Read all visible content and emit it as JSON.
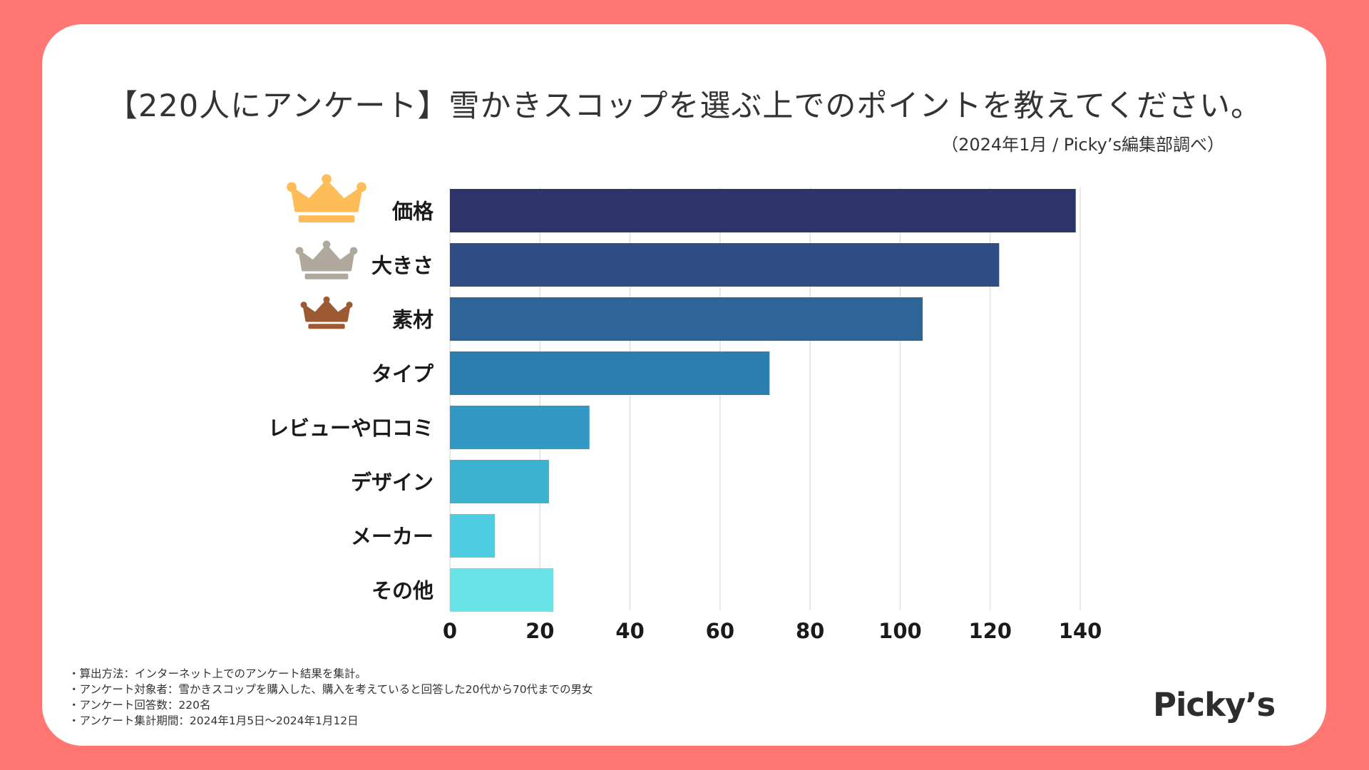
{
  "header": {
    "title": "【220人にアンケート】雪かきスコップを選ぶ上でのポイントを教えてください。",
    "source": "（2024年1月 / Picky’s編集部調べ）"
  },
  "chart_data": {
    "type": "bar",
    "orientation": "horizontal",
    "categories": [
      "価格",
      "大きさ",
      "素材",
      "タイプ",
      "レビューや口コミ",
      "デザイン",
      "メーカー",
      "その他"
    ],
    "values": [
      139,
      122,
      105,
      71,
      31,
      22,
      10,
      23
    ],
    "colors": [
      "#2e3369",
      "#304d86",
      "#2f6499",
      "#2c7eb0",
      "#3399c4",
      "#3cb2d1",
      "#4ecde0",
      "#68e3e6"
    ],
    "xticks": [
      0,
      20,
      40,
      60,
      80,
      100,
      120,
      140
    ],
    "xlim": [
      0,
      140
    ],
    "rank_crowns": [
      {
        "rank": 1,
        "color": "#ffbd59"
      },
      {
        "rank": 2,
        "color": "#b0a89d"
      },
      {
        "rank": 3,
        "color": "#9c5a33"
      }
    ],
    "gridline_color": "#d9d9d9"
  },
  "footnotes": [
    "・算出方法：インターネット上でのアンケート結果を集計。",
    "・アンケート対象者：雪かきスコップを購入した、購入を考えていると回答した20代から70代までの男女",
    "・アンケート回答数：220名",
    "・アンケート集計期間：2024年1月5日〜2024年1月12日"
  ],
  "brand": {
    "logo_text": "Picky’s"
  }
}
